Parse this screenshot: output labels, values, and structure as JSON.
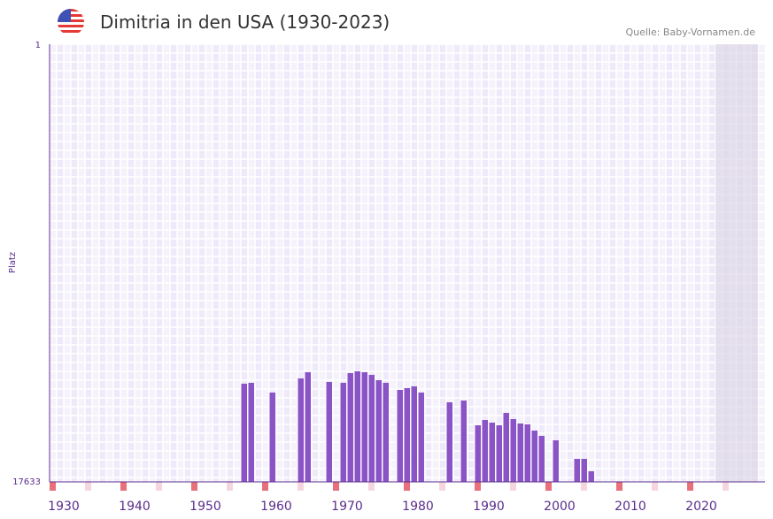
{
  "header": {
    "title": "Dimitria in den USA (1930-2023)",
    "source": "Quelle: Baby-Vornamen.de",
    "flag_icon": "us-flag-icon"
  },
  "chart_data": {
    "type": "bar",
    "title": "Dimitria in den USA (1930-2023)",
    "xlabel": "",
    "ylabel": "Platz",
    "xlim": [
      1930,
      2030
    ],
    "ylim": [
      1,
      17633
    ],
    "y_inverted": true,
    "ytick_labels": [
      "1",
      "17633"
    ],
    "xtick_labels": [
      "1930",
      "1940",
      "1950",
      "1960",
      "1970",
      "1980",
      "1990",
      "2000",
      "2010",
      "2020"
    ],
    "x": [
      1957,
      1958,
      1961,
      1965,
      1966,
      1969,
      1971,
      1972,
      1973,
      1974,
      1975,
      1976,
      1977,
      1979,
      1980,
      1981,
      1982,
      1986,
      1988,
      1990,
      1991,
      1992,
      1993,
      1994,
      1995,
      1996,
      1997,
      1998,
      1999,
      2001,
      2004,
      2005,
      2006
    ],
    "values": [
      13678,
      13643,
      14035,
      13465,
      13215,
      13607,
      13643,
      13251,
      13180,
      13215,
      13322,
      13536,
      13643,
      13928,
      13857,
      13786,
      14035,
      14427,
      14356,
      15353,
      15140,
      15246,
      15353,
      14854,
      15104,
      15282,
      15318,
      15567,
      15781,
      15959,
      16707,
      16707,
      17206
    ],
    "shaded_range": [
      2024,
      2030
    ],
    "colors": {
      "bar": "#8a53c6",
      "axis": "#5a2d8c",
      "grid_a": "#efeafa",
      "grid_b": "#f5f2fc",
      "decade": "#e8707a",
      "half": "#f5d6de",
      "shade": "#d8d2e2"
    }
  }
}
